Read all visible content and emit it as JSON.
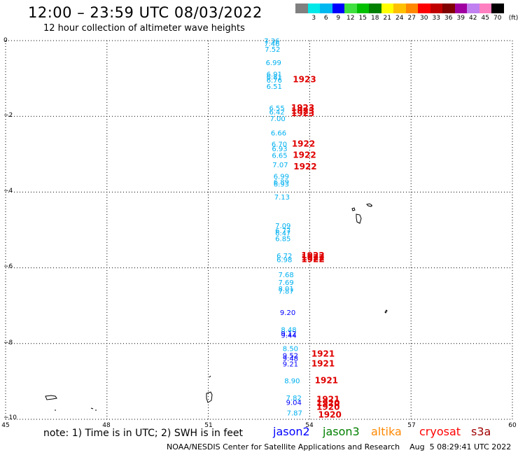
{
  "header": {
    "title": "12:00 – 23:59 UTC 08/03/2022",
    "subtitle": "12 hour collection of altimeter wave heights"
  },
  "color_scale": {
    "unit": "(ft)",
    "labels": [
      "3",
      "6",
      "9",
      "12",
      "15",
      "18",
      "21",
      "24",
      "27",
      "30",
      "33",
      "36",
      "39",
      "42",
      "45",
      "70"
    ],
    "colors": [
      "#808080",
      "#00e8e8",
      "#00b8f0",
      "#0000ff",
      "#40e040",
      "#00c000",
      "#008000",
      "#ffff00",
      "#ffc000",
      "#ff8800",
      "#ff0000",
      "#c00000",
      "#800000",
      "#a000a0",
      "#c080f0",
      "#ff80c0",
      "#000000"
    ]
  },
  "axes": {
    "y_ticks": [
      "0",
      "−2",
      "−4",
      "−6",
      "−8",
      "−10"
    ],
    "x_ticks": [
      "45",
      "48",
      "51",
      "54",
      "57",
      "60"
    ]
  },
  "note": "note:  1) Time is in UTC;  2) SWH is in feet",
  "legend": [
    {
      "name": "jason2",
      "color": "#0000ff"
    },
    {
      "name": "jason3",
      "color": "#008000"
    },
    {
      "name": "altika",
      "color": "#ff8800"
    },
    {
      "name": "cryosat",
      "color": "#ff0000"
    },
    {
      "name": "s3a",
      "color": "#a00000"
    }
  ],
  "footer": "NOAA/NESDIS Center for Satellite Applications and Research    Aug  5 08:29:41 UTC 2022",
  "observations": [
    {
      "lon": 52.65,
      "lat": -0.07,
      "swh": "7.36",
      "color": "#00b0f0"
    },
    {
      "lon": 52.65,
      "lat": -0.15,
      "swh": "7.46",
      "color": "#00b0f0"
    },
    {
      "lon": 52.67,
      "lat": -0.3,
      "swh": "7.52",
      "color": "#00b0f0"
    },
    {
      "lon": 52.7,
      "lat": -0.65,
      "swh": "6.99",
      "color": "#00b0f0"
    },
    {
      "lon": 52.72,
      "lat": -0.95,
      "swh": "6.91",
      "color": "#00b0f0"
    },
    {
      "lon": 52.72,
      "lat": -1.03,
      "swh": "6.81",
      "color": "#00b0f0"
    },
    {
      "lon": 52.72,
      "lat": -1.11,
      "swh": "6.76",
      "color": "#00b0f0"
    },
    {
      "lon": 52.72,
      "lat": -1.28,
      "swh": "6.51",
      "color": "#00b0f0"
    },
    {
      "lon": 52.8,
      "lat": -1.85,
      "swh": "6.55",
      "color": "#00b0f0"
    },
    {
      "lon": 52.8,
      "lat": -1.95,
      "swh": "6.42",
      "color": "#00b0f0"
    },
    {
      "lon": 52.82,
      "lat": -2.13,
      "swh": "7.00",
      "color": "#00b0f0"
    },
    {
      "lon": 52.85,
      "lat": -2.5,
      "swh": "6.66",
      "color": "#00b0f0"
    },
    {
      "lon": 52.87,
      "lat": -2.8,
      "swh": "6.70",
      "color": "#00b0f0"
    },
    {
      "lon": 52.88,
      "lat": -2.92,
      "swh": "6.93",
      "color": "#00b0f0"
    },
    {
      "lon": 52.88,
      "lat": -3.1,
      "swh": "6.65",
      "color": "#00b0f0"
    },
    {
      "lon": 52.9,
      "lat": -3.35,
      "swh": "7.07",
      "color": "#00b0f0"
    },
    {
      "lon": 52.93,
      "lat": -3.65,
      "swh": "6.99",
      "color": "#00b0f0"
    },
    {
      "lon": 52.93,
      "lat": -3.8,
      "swh": "6.89",
      "color": "#00b0f0"
    },
    {
      "lon": 52.93,
      "lat": -3.85,
      "swh": "6.93",
      "color": "#00b0f0"
    },
    {
      "lon": 52.95,
      "lat": -4.2,
      "swh": "7.13",
      "color": "#00b0f0"
    },
    {
      "lon": 52.98,
      "lat": -4.95,
      "swh": "7.09",
      "color": "#00b0f0"
    },
    {
      "lon": 52.98,
      "lat": -5.08,
      "swh": "6.77",
      "color": "#00b0f0"
    },
    {
      "lon": 52.98,
      "lat": -5.15,
      "swh": "6.47",
      "color": "#00b0f0"
    },
    {
      "lon": 52.98,
      "lat": -5.3,
      "swh": "6.85",
      "color": "#00b0f0"
    },
    {
      "lon": 53.02,
      "lat": -5.75,
      "swh": "6.72",
      "color": "#00b0f0"
    },
    {
      "lon": 53.02,
      "lat": -5.85,
      "swh": "6.98",
      "color": "#00b0f0"
    },
    {
      "lon": 53.07,
      "lat": -6.25,
      "swh": "7.68",
      "color": "#00b0f0"
    },
    {
      "lon": 53.07,
      "lat": -6.45,
      "swh": "7.69",
      "color": "#00b0f0"
    },
    {
      "lon": 53.07,
      "lat": -6.62,
      "swh": "8.01",
      "color": "#00b0f0"
    },
    {
      "lon": 53.07,
      "lat": -6.68,
      "swh": "7.87",
      "color": "#00b0f0"
    },
    {
      "lon": 53.12,
      "lat": -7.25,
      "swh": "9.20",
      "color": "#0000ff"
    },
    {
      "lon": 53.15,
      "lat": -7.7,
      "swh": "8.48",
      "color": "#00b0f0"
    },
    {
      "lon": 53.15,
      "lat": -7.8,
      "swh": "9.12",
      "color": "#0000ff"
    },
    {
      "lon": 53.15,
      "lat": -7.85,
      "swh": "9.44",
      "color": "#0000ff"
    },
    {
      "lon": 53.2,
      "lat": -8.2,
      "swh": "8.50",
      "color": "#00b0f0"
    },
    {
      "lon": 53.2,
      "lat": -8.38,
      "swh": "9.52",
      "color": "#0000ff"
    },
    {
      "lon": 53.2,
      "lat": -8.46,
      "swh": "9.48",
      "color": "#0000ff"
    },
    {
      "lon": 53.2,
      "lat": -8.6,
      "swh": "9.21",
      "color": "#0000ff"
    },
    {
      "lon": 53.25,
      "lat": -9.05,
      "swh": "8.90",
      "color": "#00b0f0"
    },
    {
      "lon": 53.3,
      "lat": -9.5,
      "swh": "7.82",
      "color": "#00b0f0"
    },
    {
      "lon": 53.3,
      "lat": -9.62,
      "swh": "9.04",
      "color": "#0000ff"
    },
    {
      "lon": 53.32,
      "lat": -9.9,
      "swh": "7.87",
      "color": "#00b0f0"
    }
  ],
  "time_labels": [
    {
      "lon": 53.5,
      "lat": -1.1,
      "text": "1923",
      "color": "#e00000"
    },
    {
      "lon": 53.45,
      "lat": -1.85,
      "text": "1923",
      "color": "#e00000"
    },
    {
      "lon": 53.45,
      "lat": -1.93,
      "text": "1923",
      "color": "#e00000"
    },
    {
      "lon": 53.45,
      "lat": -2.0,
      "text": "1923",
      "color": "#e00000"
    },
    {
      "lon": 53.47,
      "lat": -2.8,
      "text": "1922",
      "color": "#e00000"
    },
    {
      "lon": 53.5,
      "lat": -3.1,
      "text": "1922",
      "color": "#e00000"
    },
    {
      "lon": 53.52,
      "lat": -3.4,
      "text": "1922",
      "color": "#e00000"
    },
    {
      "lon": 53.75,
      "lat": -5.75,
      "text": "1922",
      "color": "#e00000"
    },
    {
      "lon": 53.75,
      "lat": -5.8,
      "text": "1922",
      "color": "#e00000"
    },
    {
      "lon": 53.75,
      "lat": -5.85,
      "text": "1922",
      "color": "#e00000"
    },
    {
      "lon": 54.05,
      "lat": -8.35,
      "text": "1921",
      "color": "#e00000"
    },
    {
      "lon": 54.05,
      "lat": -8.6,
      "text": "1921",
      "color": "#e00000"
    },
    {
      "lon": 54.15,
      "lat": -9.05,
      "text": "1921",
      "color": "#e00000"
    },
    {
      "lon": 54.2,
      "lat": -9.55,
      "text": "1921",
      "color": "#e00000"
    },
    {
      "lon": 54.2,
      "lat": -9.65,
      "text": "1920",
      "color": "#e00000"
    },
    {
      "lon": 54.2,
      "lat": -9.75,
      "text": "1920",
      "color": "#e00000"
    },
    {
      "lon": 54.25,
      "lat": -9.95,
      "text": "1920",
      "color": "#e00000"
    }
  ],
  "island_icons": [
    "seychelles-island-icon",
    "seychelles-island-icon",
    "agalega-island-icon",
    "comoros-island-icon",
    "mayotte-island-icon",
    "aldabra-island-icon",
    "aldabra-island-icon"
  ]
}
